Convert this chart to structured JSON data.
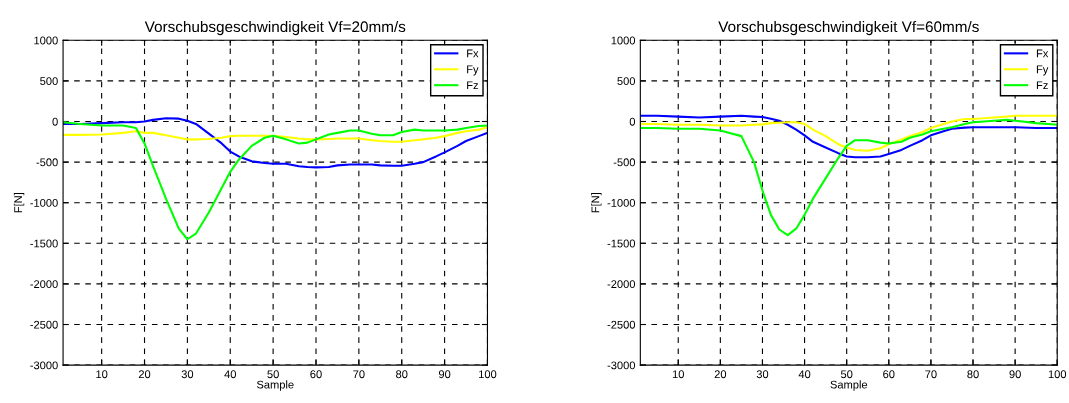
{
  "chart_data": [
    {
      "type": "line",
      "title": "Vorschubsgeschwindigkeit Vf=20mm/s",
      "xlabel": "Sample",
      "ylabel": "F[N]",
      "x": [
        1,
        5,
        10,
        15,
        18,
        20,
        22,
        25,
        28,
        30,
        32,
        35,
        38,
        40,
        42,
        45,
        48,
        50,
        53,
        56,
        58,
        60,
        63,
        65,
        68,
        70,
        73,
        75,
        78,
        80,
        83,
        85,
        88,
        90,
        93,
        95,
        98,
        100
      ],
      "series": [
        {
          "name": "Fx",
          "color": "#0000ff",
          "values": [
            -30,
            -30,
            -20,
            -10,
            -10,
            0,
            20,
            40,
            35,
            10,
            -30,
            -150,
            -270,
            -370,
            -430,
            -490,
            -510,
            -520,
            -520,
            -550,
            -560,
            -565,
            -560,
            -540,
            -530,
            -530,
            -530,
            -540,
            -545,
            -545,
            -520,
            -500,
            -430,
            -380,
            -300,
            -240,
            -180,
            -140
          ]
        },
        {
          "name": "Fy",
          "color": "#ffff00",
          "values": [
            -165,
            -165,
            -160,
            -140,
            -120,
            -140,
            -140,
            -170,
            -200,
            -220,
            -220,
            -215,
            -200,
            -180,
            -175,
            -175,
            -175,
            -175,
            -190,
            -210,
            -220,
            -220,
            -215,
            -210,
            -210,
            -210,
            -230,
            -240,
            -250,
            -250,
            -230,
            -220,
            -200,
            -180,
            -140,
            -120,
            -100,
            -70
          ]
        },
        {
          "name": "Fz",
          "color": "#00ff00",
          "values": [
            -10,
            -30,
            -50,
            -50,
            -80,
            -270,
            -550,
            -950,
            -1320,
            -1450,
            -1380,
            -1120,
            -820,
            -620,
            -470,
            -300,
            -200,
            -175,
            -220,
            -270,
            -260,
            -220,
            -160,
            -140,
            -110,
            -110,
            -150,
            -170,
            -170,
            -130,
            -100,
            -110,
            -110,
            -110,
            -100,
            -80,
            -55,
            -50
          ]
        }
      ],
      "xlim": [
        1,
        100
      ],
      "xticks": [
        10,
        20,
        30,
        40,
        50,
        60,
        70,
        80,
        90,
        100
      ],
      "ylim": [
        -3000,
        1000
      ],
      "yticks": [
        -3000,
        -2500,
        -2000,
        -1500,
        -1000,
        -500,
        0,
        500,
        1000
      ],
      "grid": true,
      "legend": "top right",
      "line_style": "solid",
      "marker": "none"
    },
    {
      "type": "line",
      "title": "Vorschubsgeschwindigkeit Vf=60mm/s",
      "xlabel": "Sample",
      "ylabel": "F[N]",
      "x": [
        1,
        5,
        10,
        15,
        20,
        25,
        28,
        30,
        32,
        34,
        36,
        38,
        40,
        42,
        45,
        48,
        50,
        52,
        55,
        58,
        60,
        63,
        65,
        68,
        70,
        73,
        75,
        78,
        80,
        85,
        88,
        90,
        95,
        100
      ],
      "series": [
        {
          "name": "Fx",
          "color": "#0000ff",
          "values": [
            70,
            70,
            60,
            50,
            60,
            70,
            60,
            55,
            35,
            10,
            -40,
            -100,
            -170,
            -250,
            -320,
            -390,
            -430,
            -440,
            -440,
            -430,
            -400,
            -350,
            -300,
            -230,
            -170,
            -120,
            -90,
            -75,
            -70,
            -70,
            -70,
            -70,
            -80,
            -80
          ]
        },
        {
          "name": "Fy",
          "color": "#ffff00",
          "values": [
            -30,
            -30,
            -40,
            -40,
            -50,
            -50,
            -40,
            -35,
            -20,
            -15,
            -10,
            -10,
            -30,
            -100,
            -180,
            -280,
            -320,
            -350,
            -360,
            -330,
            -280,
            -220,
            -180,
            -130,
            -80,
            -30,
            0,
            30,
            30,
            50,
            60,
            70,
            70,
            70
          ]
        },
        {
          "name": "Fz",
          "color": "#00ff00",
          "values": [
            -80,
            -80,
            -90,
            -90,
            -110,
            -180,
            -500,
            -850,
            -1150,
            -1330,
            -1400,
            -1320,
            -1150,
            -950,
            -700,
            -450,
            -300,
            -230,
            -230,
            -260,
            -270,
            -250,
            -200,
            -160,
            -120,
            -90,
            -70,
            -30,
            -10,
            10,
            20,
            10,
            -20,
            -40
          ]
        }
      ],
      "xlim": [
        1,
        100
      ],
      "xticks": [
        10,
        20,
        30,
        40,
        50,
        60,
        70,
        80,
        90,
        100
      ],
      "ylim": [
        -3000,
        1000
      ],
      "yticks": [
        -3000,
        -2500,
        -2000,
        -1500,
        -1000,
        -500,
        0,
        500,
        1000
      ],
      "grid": true,
      "legend": "top right",
      "line_style": "solid",
      "marker": "none"
    }
  ]
}
